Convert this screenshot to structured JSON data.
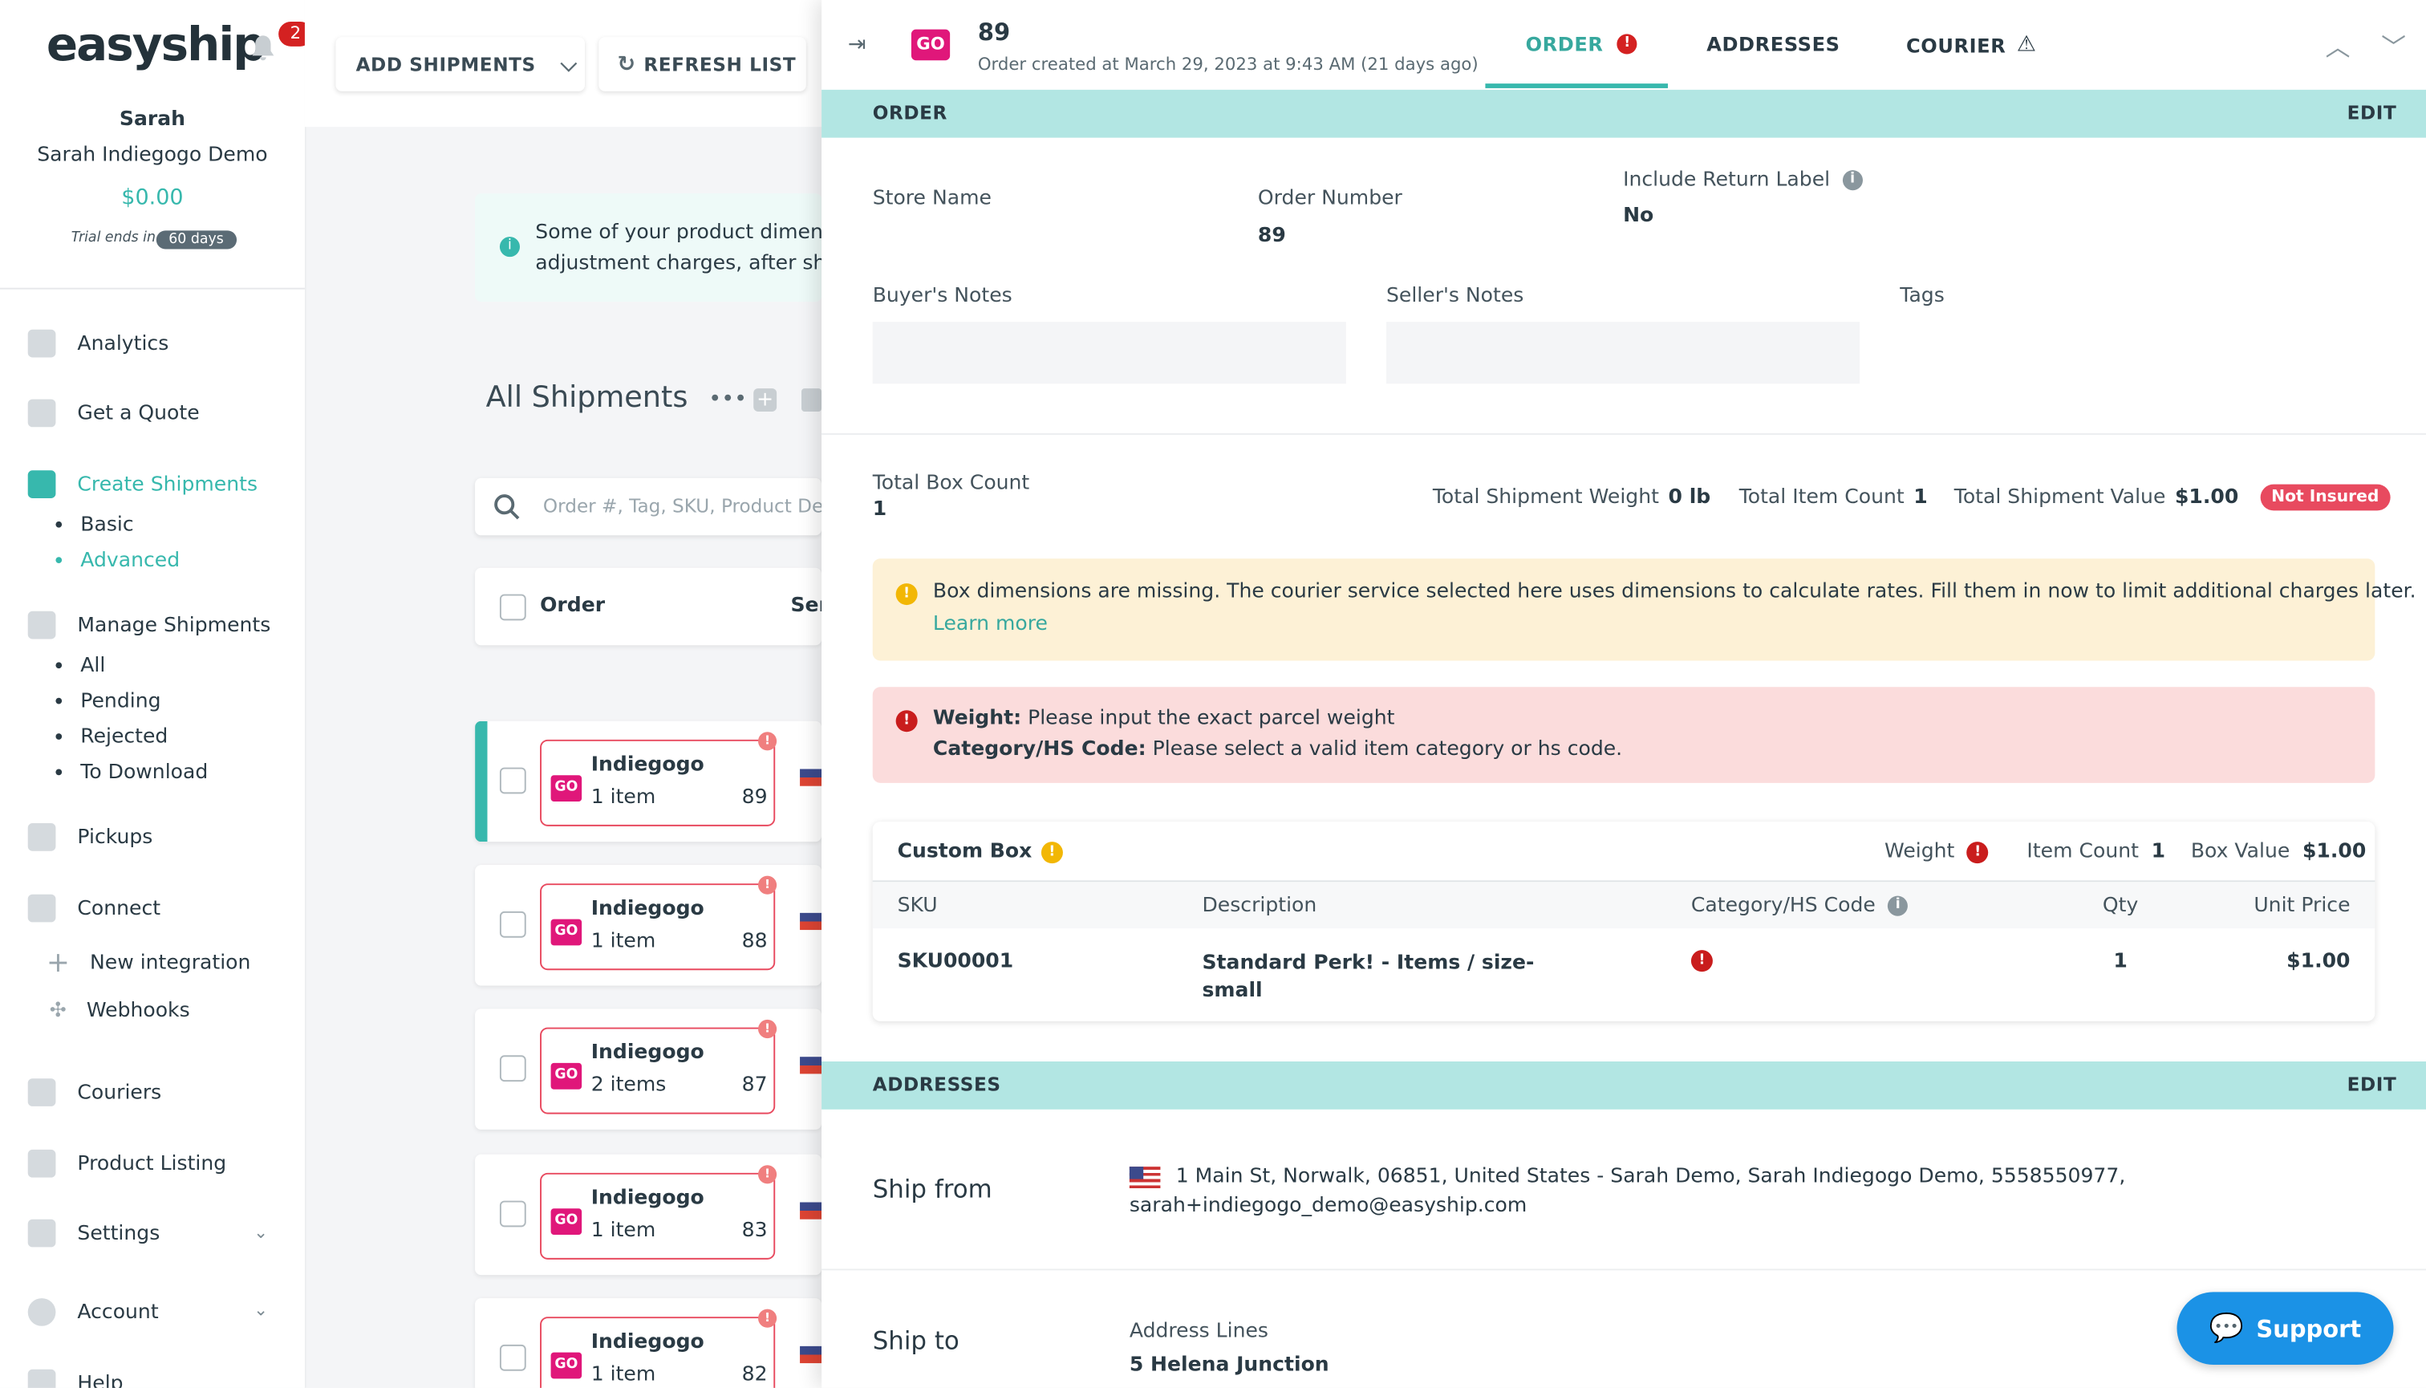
{
  "app": {
    "logo": "easyship",
    "notification_count": "2"
  },
  "account": {
    "name": "Sarah",
    "company": "Sarah Indiegogo Demo",
    "balance": "$0.00",
    "trial_text": "Trial ends in",
    "trial_days": "60 days"
  },
  "sidebar": {
    "items": [
      {
        "label": "Analytics",
        "icon": "analytics-icon"
      },
      {
        "label": "Get a Quote",
        "icon": "calculator-icon"
      },
      {
        "label": "Create Shipments",
        "icon": "box-icon"
      },
      {
        "label": "Manage Shipments",
        "icon": "barcode-icon"
      },
      {
        "label": "Pickups",
        "icon": "truck-icon"
      },
      {
        "label": "Connect",
        "icon": "plug-icon"
      },
      {
        "label": "Couriers",
        "icon": "courier-icon"
      },
      {
        "label": "Product Listing",
        "icon": "product-icon"
      },
      {
        "label": "Settings",
        "icon": "gear-icon"
      },
      {
        "label": "Account",
        "icon": "user-icon"
      },
      {
        "label": "Help",
        "icon": "help-icon"
      }
    ],
    "create_sub": [
      "Basic",
      "Advanced"
    ],
    "manage_sub": [
      "All",
      "Pending",
      "Rejected",
      "To Download"
    ],
    "connect_sub": [
      "New integration",
      "Webhooks"
    ]
  },
  "toolbar": {
    "add_shipments": "ADD SHIPMENTS",
    "refresh_list": "REFRESH LIST"
  },
  "notice": {
    "line1": "Some of your product dimensi",
    "line2": "adjustment charges, after shi"
  },
  "list": {
    "title": "All Shipments",
    "search_placeholder": "Order #, Tag, SKU, Product Des",
    "col_order": "Order",
    "col_ser": "Ser",
    "rows": [
      {
        "store": "Indiegogo",
        "items": "1 item",
        "order": "89"
      },
      {
        "store": "Indiegogo",
        "items": "1 item",
        "order": "88"
      },
      {
        "store": "Indiegogo",
        "items": "2 items",
        "order": "87"
      },
      {
        "store": "Indiegogo",
        "items": "1 item",
        "order": "83"
      },
      {
        "store": "Indiegogo",
        "items": "1 item",
        "order": "82"
      }
    ],
    "go_badge": "GO"
  },
  "panel": {
    "order_number": "89",
    "created": "Order created at March 29, 2023 at 9:43 AM (21 days ago)",
    "tabs": {
      "order": "ORDER",
      "addresses": "ADDRESSES",
      "courier": "COURIER"
    },
    "order_section": {
      "title": "ORDER",
      "edit": "EDIT",
      "store_name_label": "Store Name",
      "order_number_label": "Order Number",
      "order_number_value": "89",
      "return_label": "Include Return Label",
      "return_value": "No",
      "buyers_notes": "Buyer's Notes",
      "sellers_notes": "Seller's Notes",
      "tags": "Tags",
      "total_box_count_label": "Total Box Count",
      "total_box_count": "1",
      "total_weight_label": "Total Shipment Weight",
      "total_weight": "0 lb",
      "total_item_count_label": "Total Item Count",
      "total_item_count": "1",
      "total_value_label": "Total Shipment Value",
      "total_value": "$1.00",
      "insurance_badge": "Not Insured"
    },
    "warning": {
      "text": "Box dimensions are missing. The courier service selected here uses dimensions to calculate rates. Fill them in now to limit additional charges later.",
      "link": "Learn more"
    },
    "errors": {
      "weight_label": "Weight:",
      "weight_msg": "Please input the exact parcel weight",
      "hs_label": "Category/HS Code:",
      "hs_msg": "Please select a valid item category or hs code."
    },
    "box": {
      "name": "Custom Box",
      "weight_label": "Weight",
      "item_count_label": "Item Count",
      "item_count": "1",
      "box_value_label": "Box Value",
      "box_value": "$1.00",
      "headers": {
        "sku": "SKU",
        "desc": "Description",
        "hs": "Category/HS Code",
        "qty": "Qty",
        "price": "Unit Price"
      },
      "item": {
        "sku": "SKU00001",
        "desc1": "Standard Perk! - Items / size-",
        "desc2": "small",
        "qty": "1",
        "price": "$1.00"
      }
    },
    "addresses_section": {
      "title": "ADDRESSES",
      "edit": "EDIT",
      "ship_from": "Ship from",
      "ship_from_line1": "1 Main St, Norwalk, 06851, United States - Sarah Demo, Sarah Indiegogo Demo, 5558550977,",
      "ship_from_line2": "sarah+indiegogo_demo@easyship.com",
      "ship_to": "Ship to",
      "address_lines_label": "Address Lines",
      "address_lines_value": "5 Helena Junction"
    }
  },
  "support": {
    "label": "Support"
  }
}
